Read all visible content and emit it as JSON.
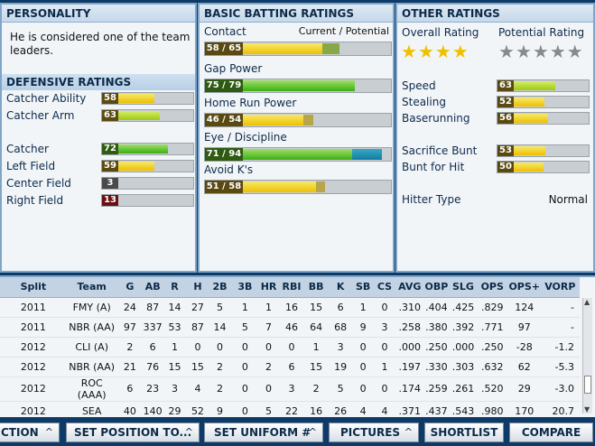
{
  "personality": {
    "title": "PERSONALITY",
    "text": "He is considered one of the team leaders."
  },
  "defensive": {
    "title": "DEFENSIVE RATINGS",
    "catcher_ability": {
      "label": "Catcher Ability",
      "value": "58"
    },
    "catcher_arm": {
      "label": "Catcher Arm",
      "value": "63"
    },
    "positions": [
      {
        "label": "Catcher",
        "value": "72"
      },
      {
        "label": "Left Field",
        "value": "59"
      },
      {
        "label": "Center Field",
        "value": "3"
      },
      {
        "label": "Right Field",
        "value": "13"
      }
    ]
  },
  "batting": {
    "title": "BASIC BATTING RATINGS",
    "legend": "Current / Potential",
    "ratings": [
      {
        "label": "Contact",
        "value": "58 / 65",
        "cur": 58,
        "pot": 65
      },
      {
        "label": "Gap Power",
        "value": "75 / 79",
        "cur": 75,
        "pot": 79
      },
      {
        "label": "Home Run Power",
        "value": "46 / 54",
        "cur": 46,
        "pot": 54
      },
      {
        "label": "Eye / Discipline",
        "value": "71 / 94",
        "cur": 71,
        "pot": 94
      },
      {
        "label": "Avoid K's",
        "value": "51 / 58",
        "cur": 51,
        "pot": 58
      }
    ]
  },
  "other": {
    "title": "OTHER RATINGS",
    "overall_label": "Overall Rating",
    "potential_label": "Potential Rating",
    "overall_stars": 4,
    "potential_stars": 5,
    "speed": {
      "label": "Speed",
      "value": "63"
    },
    "stealing": {
      "label": "Stealing",
      "value": "52"
    },
    "baserunning": {
      "label": "Baserunning",
      "value": "56"
    },
    "sac_bunt": {
      "label": "Sacrifice Bunt",
      "value": "53"
    },
    "bunt_hit": {
      "label": "Bunt for Hit",
      "value": "50"
    },
    "hitter_type_label": "Hitter Type",
    "hitter_type_value": "Normal"
  },
  "stats": {
    "headers": [
      "Split",
      "Team",
      "G",
      "AB",
      "R",
      "H",
      "2B",
      "3B",
      "HR",
      "RBI",
      "BB",
      "K",
      "SB",
      "CS",
      "AVG",
      "OBP",
      "SLG",
      "OPS",
      "OPS+",
      "VORP"
    ],
    "rows": [
      [
        "2011",
        "FMY (A)",
        "24",
        "87",
        "14",
        "27",
        "5",
        "1",
        "1",
        "16",
        "15",
        "6",
        "1",
        "0",
        ".310",
        ".404",
        ".425",
        ".829",
        "124",
        "-"
      ],
      [
        "2011",
        "NBR (AA)",
        "97",
        "337",
        "53",
        "87",
        "14",
        "5",
        "7",
        "46",
        "64",
        "68",
        "9",
        "3",
        ".258",
        ".380",
        ".392",
        ".771",
        "97",
        "-"
      ],
      [
        "2012",
        "CLI (A)",
        "2",
        "6",
        "1",
        "0",
        "0",
        "0",
        "0",
        "0",
        "1",
        "3",
        "0",
        "0",
        ".000",
        ".250",
        ".000",
        ".250",
        "-28",
        "-1.2"
      ],
      [
        "2012",
        "NBR (AA)",
        "21",
        "76",
        "15",
        "15",
        "2",
        "0",
        "2",
        "6",
        "15",
        "19",
        "0",
        "1",
        ".197",
        ".330",
        ".303",
        ".632",
        "62",
        "-5.3"
      ],
      [
        "2012",
        "ROC (AAA)",
        "6",
        "23",
        "3",
        "4",
        "2",
        "0",
        "0",
        "3",
        "2",
        "5",
        "0",
        "0",
        ".174",
        ".259",
        ".261",
        ".520",
        "29",
        "-3.0"
      ],
      [
        "2012",
        "SEA",
        "40",
        "140",
        "29",
        "52",
        "9",
        "0",
        "5",
        "22",
        "16",
        "26",
        "4",
        "4",
        ".371",
        ".437",
        ".543",
        ".980",
        "170",
        "20.7"
      ]
    ]
  },
  "buttons": {
    "action": "CTION",
    "set_position": "SET POSITION TO...",
    "set_uniform": "SET UNIFORM #",
    "pictures": "PICTURES",
    "shortlist": "SHORTLIST",
    "compare": "COMPARE"
  }
}
